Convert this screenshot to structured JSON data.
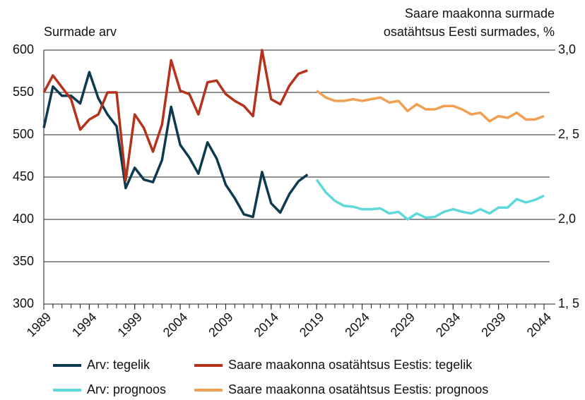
{
  "chart_data": {
    "type": "line",
    "ylabel": "Surmade arv",
    "y2label": [
      "Saare maakonna surmade",
      "osatähtsus Eesti surmades, %"
    ],
    "x": [
      1989,
      1990,
      1991,
      1992,
      1993,
      1994,
      1995,
      1996,
      1997,
      1998,
      1999,
      2000,
      2001,
      2002,
      2003,
      2004,
      2005,
      2006,
      2007,
      2008,
      2009,
      2010,
      2011,
      2012,
      2013,
      2014,
      2015,
      2016,
      2017,
      2018,
      2019,
      2020,
      2021,
      2022,
      2023,
      2024,
      2025,
      2026,
      2027,
      2028,
      2029,
      2030,
      2031,
      2032,
      2033,
      2034,
      2035,
      2036,
      2037,
      2038,
      2039,
      2040,
      2041,
      2042,
      2043,
      2044
    ],
    "xlim": [
      1989,
      2044
    ],
    "xticks": [
      1989,
      1994,
      1999,
      2004,
      2009,
      2014,
      2019,
      2024,
      2029,
      2034,
      2039,
      2044
    ],
    "ylim": [
      300,
      600
    ],
    "yticks": [
      300,
      350,
      400,
      450,
      500,
      550,
      600
    ],
    "y2lim": [
      1.5,
      3.0
    ],
    "y2ticks": [
      {
        "value": 1.5,
        "label": "1, 5"
      },
      {
        "value": 2.0,
        "label": "2,0"
      },
      {
        "value": 2.5,
        "label": "2, 5"
      },
      {
        "value": 3.0,
        "label": "3,0"
      }
    ],
    "grid": true,
    "legend": "bottom",
    "series": [
      {
        "name": "Arv: tegelik",
        "color": "#0e3a50",
        "values": [
          508,
          557,
          546,
          546,
          537,
          574,
          543,
          524,
          510,
          437,
          461,
          447,
          444,
          470,
          533,
          488,
          473,
          454,
          491,
          472,
          441,
          425,
          406,
          403,
          456,
          419,
          408,
          430,
          445,
          453,
          null,
          null,
          null,
          null,
          null,
          null,
          null,
          null,
          null,
          null,
          null,
          null,
          null,
          null,
          null,
          null,
          null,
          null,
          null,
          null,
          null,
          null,
          null,
          null,
          null,
          null
        ]
      },
      {
        "name": "Saare maakonna osatähtsus Eestis: tegelik",
        "color": "#b5321c",
        "axis": "y2",
        "values": [
          2.75,
          2.85,
          2.78,
          2.71,
          2.53,
          2.59,
          2.62,
          2.75,
          2.75,
          2.23,
          2.62,
          2.54,
          2.4,
          2.56,
          2.94,
          2.76,
          2.74,
          2.62,
          2.81,
          2.82,
          2.74,
          2.7,
          2.67,
          2.61,
          3.0,
          2.71,
          2.68,
          2.79,
          2.86,
          2.88,
          null,
          null,
          null,
          null,
          null,
          null,
          null,
          null,
          null,
          null,
          null,
          null,
          null,
          null,
          null,
          null,
          null,
          null,
          null,
          null,
          null,
          null,
          null,
          null,
          null,
          null
        ]
      },
      {
        "name": "Arv: prognoos",
        "color": "#5fd8dc",
        "values": [
          null,
          null,
          null,
          null,
          null,
          null,
          null,
          null,
          null,
          null,
          null,
          null,
          null,
          null,
          null,
          null,
          null,
          null,
          null,
          null,
          null,
          null,
          null,
          null,
          null,
          null,
          null,
          null,
          null,
          null,
          447,
          432,
          422,
          416,
          415,
          412,
          412,
          413,
          407,
          409,
          400,
          407,
          402,
          403,
          409,
          412,
          409,
          407,
          412,
          407,
          414,
          414,
          424,
          420,
          423,
          428
        ]
      },
      {
        "name": "Saare maakonna osatähtsus Eestis: prognoos",
        "color": "#f0a050",
        "axis": "y2",
        "values": [
          null,
          null,
          null,
          null,
          null,
          null,
          null,
          null,
          null,
          null,
          null,
          null,
          null,
          null,
          null,
          null,
          null,
          null,
          null,
          null,
          null,
          null,
          null,
          null,
          null,
          null,
          null,
          null,
          null,
          null,
          2.76,
          2.72,
          2.7,
          2.7,
          2.71,
          2.7,
          2.71,
          2.72,
          2.69,
          2.7,
          2.64,
          2.68,
          2.65,
          2.65,
          2.67,
          2.67,
          2.65,
          2.62,
          2.63,
          2.58,
          2.61,
          2.6,
          2.63,
          2.59,
          2.59,
          2.61
        ]
      }
    ]
  }
}
